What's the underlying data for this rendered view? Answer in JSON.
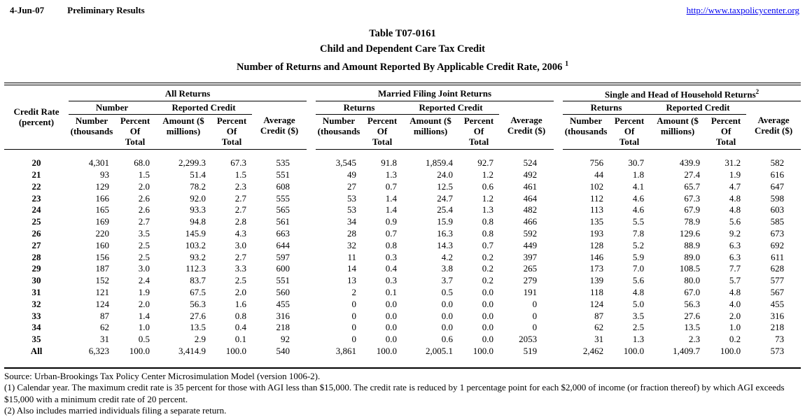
{
  "page_header": {
    "date": "4-Jun-07",
    "status": "Preliminary Results",
    "url": "http://www.taxpolicycenter.org"
  },
  "title": {
    "line1": "Table T07-0161",
    "line2": "Child and Dependent Care Tax Credit",
    "line3": "Number of Returns and Amount Reported By Applicable Credit Rate, 2006",
    "line3_superscript": "1"
  },
  "table": {
    "row_label": {
      "l1": "Credit Rate",
      "l2": "(percent)"
    },
    "groups": [
      {
        "label": "All Returns",
        "superscript": "",
        "returns_label": "Number",
        "reported_label": "Reported Credit"
      },
      {
        "label": "Married Filing Joint Returns",
        "superscript": "",
        "returns_label": "Returns",
        "reported_label": "Reported Credit"
      },
      {
        "label": "Single and Head of Household Returns",
        "superscript": "2",
        "returns_label": "Returns",
        "reported_label": "Reported Credit"
      }
    ],
    "average_credit": {
      "l1": "Average",
      "l2": "Credit ($)"
    },
    "columns": [
      {
        "l1": "Number",
        "l2": "(thousands"
      },
      {
        "l1": "Percent Of",
        "l2": "Total"
      },
      {
        "l1": "Amount ($",
        "l2": "millions)"
      },
      {
        "l1": "Percent Of",
        "l2": "Total"
      }
    ],
    "rows": [
      {
        "rate": "20",
        "values": [
          "4,301",
          "68.0",
          "2,299.3",
          "67.3",
          "535",
          "3,545",
          "91.8",
          "1,859.4",
          "92.7",
          "524",
          "756",
          "30.7",
          "439.9",
          "31.2",
          "582"
        ]
      },
      {
        "rate": "21",
        "values": [
          "93",
          "1.5",
          "51.4",
          "1.5",
          "551",
          "49",
          "1.3",
          "24.0",
          "1.2",
          "492",
          "44",
          "1.8",
          "27.4",
          "1.9",
          "616"
        ]
      },
      {
        "rate": "22",
        "values": [
          "129",
          "2.0",
          "78.2",
          "2.3",
          "608",
          "27",
          "0.7",
          "12.5",
          "0.6",
          "461",
          "102",
          "4.1",
          "65.7",
          "4.7",
          "647"
        ]
      },
      {
        "rate": "23",
        "values": [
          "166",
          "2.6",
          "92.0",
          "2.7",
          "555",
          "53",
          "1.4",
          "24.7",
          "1.2",
          "464",
          "112",
          "4.6",
          "67.3",
          "4.8",
          "598"
        ]
      },
      {
        "rate": "24",
        "values": [
          "165",
          "2.6",
          "93.3",
          "2.7",
          "565",
          "53",
          "1.4",
          "25.4",
          "1.3",
          "482",
          "113",
          "4.6",
          "67.9",
          "4.8",
          "603"
        ]
      },
      {
        "rate": "25",
        "values": [
          "169",
          "2.7",
          "94.8",
          "2.8",
          "561",
          "34",
          "0.9",
          "15.9",
          "0.8",
          "466",
          "135",
          "5.5",
          "78.9",
          "5.6",
          "585"
        ]
      },
      {
        "rate": "26",
        "values": [
          "220",
          "3.5",
          "145.9",
          "4.3",
          "663",
          "28",
          "0.7",
          "16.3",
          "0.8",
          "592",
          "193",
          "7.8",
          "129.6",
          "9.2",
          "673"
        ]
      },
      {
        "rate": "27",
        "values": [
          "160",
          "2.5",
          "103.2",
          "3.0",
          "644",
          "32",
          "0.8",
          "14.3",
          "0.7",
          "449",
          "128",
          "5.2",
          "88.9",
          "6.3",
          "692"
        ]
      },
      {
        "rate": "28",
        "values": [
          "156",
          "2.5",
          "93.2",
          "2.7",
          "597",
          "11",
          "0.3",
          "4.2",
          "0.2",
          "397",
          "146",
          "5.9",
          "89.0",
          "6.3",
          "611"
        ]
      },
      {
        "rate": "29",
        "values": [
          "187",
          "3.0",
          "112.3",
          "3.3",
          "600",
          "14",
          "0.4",
          "3.8",
          "0.2",
          "265",
          "173",
          "7.0",
          "108.5",
          "7.7",
          "628"
        ]
      },
      {
        "rate": "30",
        "values": [
          "152",
          "2.4",
          "83.7",
          "2.5",
          "551",
          "13",
          "0.3",
          "3.7",
          "0.2",
          "279",
          "139",
          "5.6",
          "80.0",
          "5.7",
          "577"
        ]
      },
      {
        "rate": "31",
        "values": [
          "121",
          "1.9",
          "67.5",
          "2.0",
          "560",
          "2",
          "0.1",
          "0.5",
          "0.0",
          "191",
          "118",
          "4.8",
          "67.0",
          "4.8",
          "567"
        ]
      },
      {
        "rate": "32",
        "values": [
          "124",
          "2.0",
          "56.3",
          "1.6",
          "455",
          "0",
          "0.0",
          "0.0",
          "0.0",
          "0",
          "124",
          "5.0",
          "56.3",
          "4.0",
          "455"
        ]
      },
      {
        "rate": "33",
        "values": [
          "87",
          "1.4",
          "27.6",
          "0.8",
          "316",
          "0",
          "0.0",
          "0.0",
          "0.0",
          "0",
          "87",
          "3.5",
          "27.6",
          "2.0",
          "316"
        ]
      },
      {
        "rate": "34",
        "values": [
          "62",
          "1.0",
          "13.5",
          "0.4",
          "218",
          "0",
          "0.0",
          "0.0",
          "0.0",
          "0",
          "62",
          "2.5",
          "13.5",
          "1.0",
          "218"
        ]
      },
      {
        "rate": "35",
        "values": [
          "31",
          "0.5",
          "2.9",
          "0.1",
          "92",
          "0",
          "0.0",
          "0.6",
          "0.0",
          "2053",
          "31",
          "1.3",
          "2.3",
          "0.2",
          "73"
        ]
      },
      {
        "rate": "All",
        "values": [
          "6,323",
          "100.0",
          "3,414.9",
          "100.0",
          "540",
          "3,861",
          "100.0",
          "2,005.1",
          "100.0",
          "519",
          "2,462",
          "100.0",
          "1,409.7",
          "100.0",
          "573"
        ]
      }
    ]
  },
  "footnotes": [
    "Source: Urban-Brookings Tax Policy Center Microsimulation Model (version 1006-2).",
    "(1) Calendar year. The maximum credit rate is 35 percent for those with AGI less than $15,000.  The credit rate is reduced by 1 percentage point for each $2,000 of income (or fraction thereof) by which AGI exceeds $15,000 with a minimum credit rate of 20 percent.",
    "(2) Also includes married individuals filing a separate return."
  ]
}
